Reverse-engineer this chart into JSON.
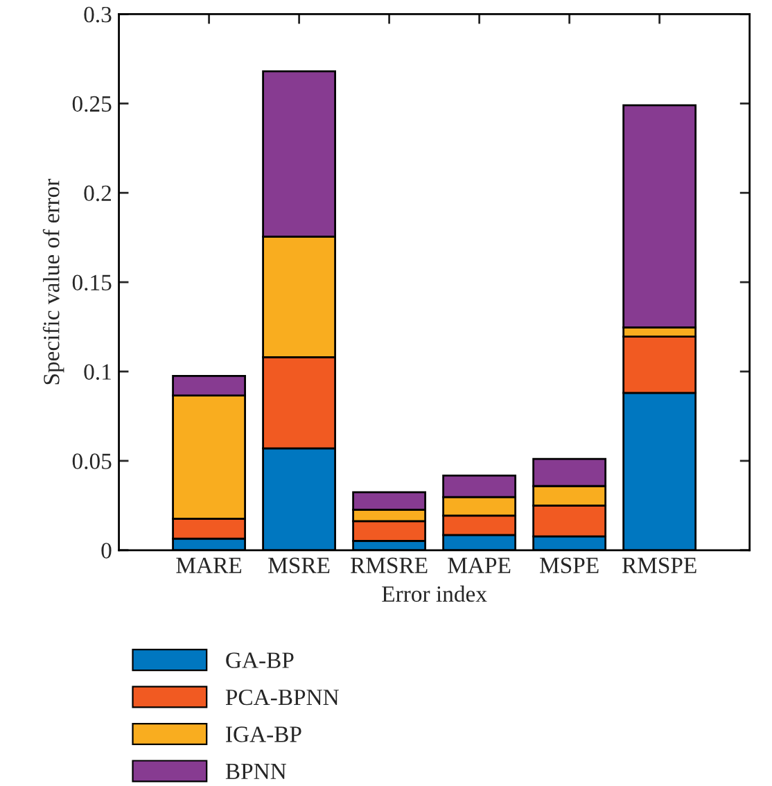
{
  "chart_data": {
    "type": "bar",
    "stacked": true,
    "xlabel": "Error index",
    "ylabel": "Specific value of error",
    "categories": [
      "MARE",
      "MSRE",
      "RMSRE",
      "MAPE",
      "MSPE",
      "RMSPE"
    ],
    "series": [
      {
        "name": "GA-BP",
        "color": "#0077c0",
        "values": [
          0.0065,
          0.057,
          0.0052,
          0.0085,
          0.0077,
          0.088
        ]
      },
      {
        "name": "PCA-BPNN",
        "color": "#f15a22",
        "values": [
          0.0111,
          0.051,
          0.0111,
          0.0109,
          0.0173,
          0.0315
        ]
      },
      {
        "name": "IGA-BP",
        "color": "#f9ad1f",
        "values": [
          0.069,
          0.0675,
          0.0064,
          0.0103,
          0.0109,
          0.0052
        ]
      },
      {
        "name": "BPNN",
        "color": "#873b91",
        "values": [
          0.0109,
          0.0925,
          0.0098,
          0.0121,
          0.0152,
          0.1243
        ]
      }
    ],
    "ylim": [
      0,
      0.3
    ],
    "yticks": [
      0,
      0.05,
      0.1,
      0.15,
      0.2,
      0.25,
      0.3
    ],
    "grid": false,
    "legend": "bottom"
  }
}
